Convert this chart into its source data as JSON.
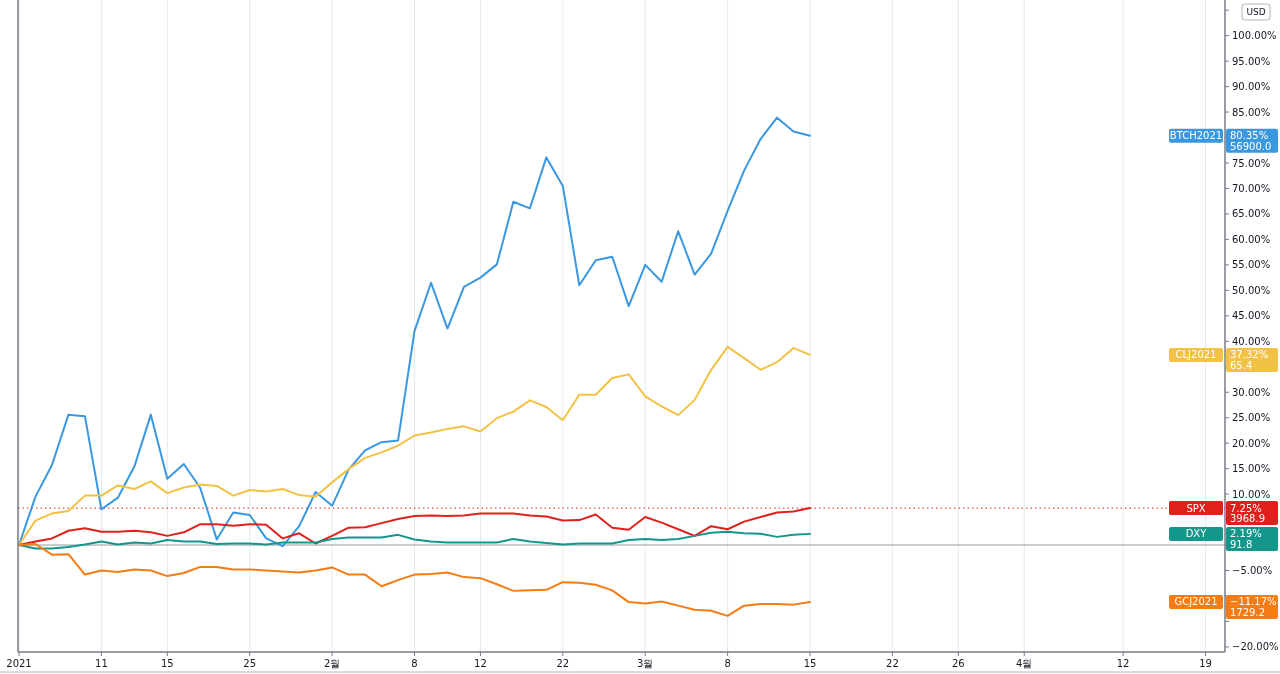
{
  "chart_data": {
    "type": "line",
    "categories": [
      "2021",
      null,
      null,
      null,
      null,
      "11",
      null,
      null,
      null,
      "15",
      null,
      null,
      null,
      null,
      "25",
      null,
      null,
      null,
      null,
      "2월",
      null,
      null,
      null,
      null,
      "8",
      null,
      null,
      null,
      "12",
      null,
      null,
      null,
      null,
      "22",
      null,
      null,
      null,
      null,
      "3월",
      null,
      null,
      null,
      null,
      "8",
      null,
      null,
      null,
      null,
      "15",
      null,
      null,
      null,
      null,
      "22",
      null,
      null,
      null,
      "26",
      null,
      null,
      null,
      "4월",
      null,
      null,
      null,
      null,
      null,
      "12",
      null,
      null,
      null,
      null,
      "19",
      null
    ],
    "series": [
      {
        "name": "BTCH2021",
        "color": "#3a98e0",
        "values": [
          0,
          9.5,
          15.7,
          25.6,
          25.3,
          7.0,
          9.3,
          15.4,
          25.6,
          13.0,
          15.9,
          11.2,
          1.1,
          6.4,
          5.9,
          1.3,
          -0.2,
          3.7,
          10.4,
          7.7,
          14.8,
          18.6,
          20.2,
          20.5,
          42.0,
          51.5,
          42.5,
          50.7,
          52.5,
          55.1,
          67.4,
          66.1,
          76.1,
          70.5,
          51.0,
          55.9,
          56.6,
          46.9,
          55.0,
          51.7,
          61.6,
          53.1,
          57.2,
          65.6,
          73.5,
          79.7,
          83.9,
          81.2,
          80.35,
          null,
          null,
          null,
          null,
          null,
          null,
          null,
          null,
          null,
          null,
          null,
          null,
          null,
          null,
          null,
          null,
          null,
          null,
          null,
          null,
          null,
          null,
          null,
          null,
          null
        ]
      },
      {
        "name": "CLJ2021",
        "color": "#f2c244",
        "values": [
          0,
          4.8,
          6.2,
          6.7,
          9.7,
          9.7,
          11.7,
          11.0,
          12.5,
          10.2,
          11.3,
          11.9,
          11.6,
          9.7,
          10.8,
          10.5,
          11.0,
          9.8,
          9.5,
          12.3,
          14.9,
          17.1,
          18.2,
          19.5,
          21.5,
          22.1,
          22.8,
          23.3,
          22.3,
          24.9,
          26.2,
          28.4,
          27.1,
          24.5,
          29.5,
          29.5,
          32.8,
          33.5,
          29.2,
          27.2,
          25.5,
          28.5,
          34.4,
          38.9,
          36.7,
          34.4,
          35.9,
          38.7,
          37.32,
          null,
          null,
          null,
          null,
          null,
          null,
          null,
          null,
          null,
          null,
          null,
          null,
          null,
          null,
          null,
          null,
          null,
          null,
          null,
          null,
          null,
          null,
          null,
          null,
          null
        ]
      },
      {
        "name": "SPX",
        "color": "#e0201b",
        "values": [
          0,
          0.7,
          1.3,
          2.8,
          3.3,
          2.6,
          2.6,
          2.8,
          2.5,
          1.8,
          2.5,
          4.1,
          4.1,
          3.8,
          4.1,
          4.0,
          1.3,
          2.3,
          0.3,
          1.8,
          3.4,
          3.5,
          4.3,
          5.1,
          5.7,
          5.8,
          5.7,
          5.8,
          6.2,
          6.2,
          6.2,
          5.8,
          5.6,
          4.8,
          4.9,
          6.0,
          3.4,
          3.0,
          5.5,
          4.4,
          3.1,
          1.8,
          3.7,
          3.1,
          4.6,
          5.5,
          6.4,
          6.6,
          7.25,
          null,
          null,
          null,
          null,
          null,
          null,
          null,
          null,
          null,
          null,
          null,
          null,
          null,
          null,
          null,
          null,
          null,
          null,
          null,
          null,
          null,
          null,
          null,
          null,
          null
        ]
      },
      {
        "name": "DXY",
        "color": "#13978a",
        "values": [
          0,
          -0.7,
          -0.7,
          -0.4,
          0.1,
          0.7,
          0.1,
          0.5,
          0.3,
          1.0,
          0.7,
          0.7,
          0.2,
          0.3,
          0.3,
          0.1,
          0.5,
          0.5,
          0.5,
          1.2,
          1.5,
          1.5,
          1.5,
          2.0,
          1.1,
          0.7,
          0.5,
          0.5,
          0.5,
          0.5,
          1.2,
          0.7,
          0.4,
          0.1,
          0.3,
          0.3,
          0.3,
          1.0,
          1.2,
          1.0,
          1.2,
          1.8,
          2.4,
          2.6,
          2.3,
          2.2,
          1.6,
          2.0,
          2.19,
          null,
          null,
          null,
          null,
          null,
          null,
          null,
          null,
          null,
          null,
          null,
          null,
          null,
          null,
          null,
          null,
          null,
          null,
          null,
          null,
          null,
          null,
          null,
          null,
          null
        ]
      },
      {
        "name": "GCJ2021",
        "color": "#f57c14",
        "values": [
          0,
          0.2,
          -1.9,
          -1.8,
          -5.8,
          -5.0,
          -5.3,
          -4.8,
          -5.0,
          -6.1,
          -5.5,
          -4.3,
          -4.3,
          -4.8,
          -4.8,
          -5.0,
          -5.2,
          -5.4,
          -5.0,
          -4.4,
          -5.8,
          -5.8,
          -8.1,
          -6.9,
          -5.8,
          -5.7,
          -5.4,
          -6.3,
          -6.5,
          -7.7,
          -9.0,
          -8.9,
          -8.8,
          -7.3,
          -7.4,
          -7.8,
          -8.9,
          -11.2,
          -11.5,
          -11.1,
          -11.9,
          -12.7,
          -12.9,
          -13.9,
          -11.9,
          -11.6,
          -11.6,
          -11.7,
          -11.17,
          null,
          null,
          null,
          null,
          null,
          null,
          null,
          null,
          null,
          null,
          null,
          null,
          null,
          null,
          null,
          null,
          null,
          null,
          null,
          null,
          null,
          null,
          null,
          null,
          null
        ]
      }
    ],
    "annotations": [
      "80.35%",
      "56900.0",
      "37.32%",
      "65.4",
      "7.25%",
      "3968.9",
      "2.19%",
      "91.8",
      "−11.17%",
      "1729.2",
      "USD"
    ],
    "ref_lines": [
      {
        "axis": "y",
        "value": 7.25,
        "color": "#e0201b",
        "line_style": "dotted"
      },
      {
        "axis": "y",
        "value": 0,
        "color": "#9598a1",
        "line_style": "solid"
      }
    ],
    "ylim": [
      -21,
      107
    ],
    "yticks": [
      {
        "value": -20,
        "label": "−20.00%"
      },
      {
        "value": -15,
        "label": null
      },
      {
        "value": -10,
        "label": null
      },
      {
        "value": -5,
        "label": "−5.00%"
      },
      {
        "value": 0,
        "label": null
      },
      {
        "value": 5,
        "label": null
      },
      {
        "value": 10,
        "label": "10.00%"
      },
      {
        "value": 15,
        "label": "15.00%"
      },
      {
        "value": 20,
        "label": "20.00%"
      },
      {
        "value": 25,
        "label": "25.00%"
      },
      {
        "value": 30,
        "label": "30.00%"
      },
      {
        "value": 35,
        "label": null
      },
      {
        "value": 40,
        "label": "40.00%"
      },
      {
        "value": 45,
        "label": "45.00%"
      },
      {
        "value": 50,
        "label": "50.00%"
      },
      {
        "value": 55,
        "label": "55.00%"
      },
      {
        "value": 60,
        "label": "60.00%"
      },
      {
        "value": 65,
        "label": "65.00%"
      },
      {
        "value": 70,
        "label": "70.00%"
      },
      {
        "value": 75,
        "label": "75.00%"
      },
      {
        "value": 80,
        "label": null
      },
      {
        "value": 85,
        "label": "85.00%"
      },
      {
        "value": 90,
        "label": "90.00%"
      },
      {
        "value": 95,
        "label": "95.00%"
      },
      {
        "value": 100,
        "label": "100.00%"
      },
      {
        "value": 105,
        "label": null
      }
    ],
    "grid": "x",
    "line_style": "solid",
    "marker": "none"
  }
}
